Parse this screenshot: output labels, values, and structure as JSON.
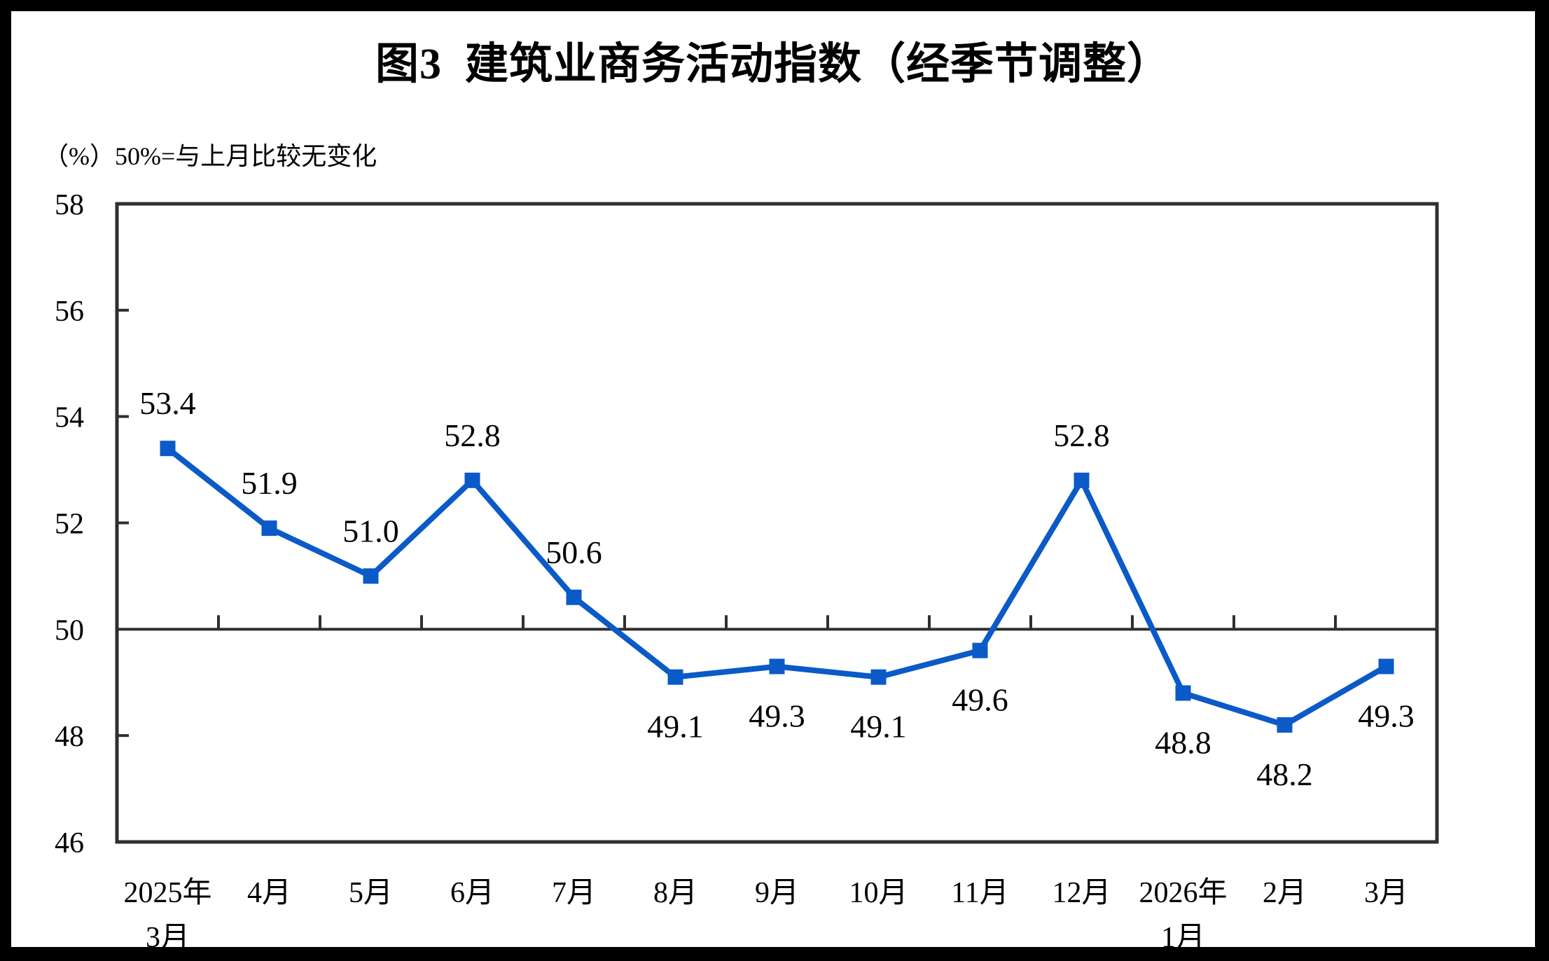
{
  "page": {
    "title": "图3  建筑业商务活动指数（经季节调整）",
    "unit_note": "（%）50%=与上月比较无变化"
  },
  "chart_data": {
    "type": "line",
    "title": "图3  建筑业商务活动指数（经季节调整）",
    "unit_label": "（%）50%=与上月比较无变化",
    "categories": [
      [
        "2025年",
        "3月"
      ],
      [
        "4月"
      ],
      [
        "5月"
      ],
      [
        "6月"
      ],
      [
        "7月"
      ],
      [
        "8月"
      ],
      [
        "9月"
      ],
      [
        "10月"
      ],
      [
        "11月"
      ],
      [
        "12月"
      ],
      [
        "2026年",
        "1月"
      ],
      [
        "2月"
      ],
      [
        "3月"
      ]
    ],
    "values": [
      53.4,
      51.9,
      51.0,
      52.8,
      50.6,
      49.1,
      49.3,
      49.1,
      49.6,
      52.8,
      48.8,
      48.2,
      49.3
    ],
    "value_labels": [
      "53.4",
      "51.9",
      "51.0",
      "52.8",
      "50.6",
      "49.1",
      "49.3",
      "49.1",
      "49.6",
      "52.8",
      "48.8",
      "48.2",
      "49.3"
    ],
    "ylim": [
      46,
      58
    ],
    "ytick_step": 2,
    "yticks": [
      46,
      48,
      50,
      52,
      54,
      56,
      58
    ],
    "reference_line": 50,
    "grid": false,
    "legend": "none",
    "marker": "square",
    "line_color": "#0A5AC8",
    "axis_color": "#2F2F2F",
    "text_color": "#000000"
  }
}
